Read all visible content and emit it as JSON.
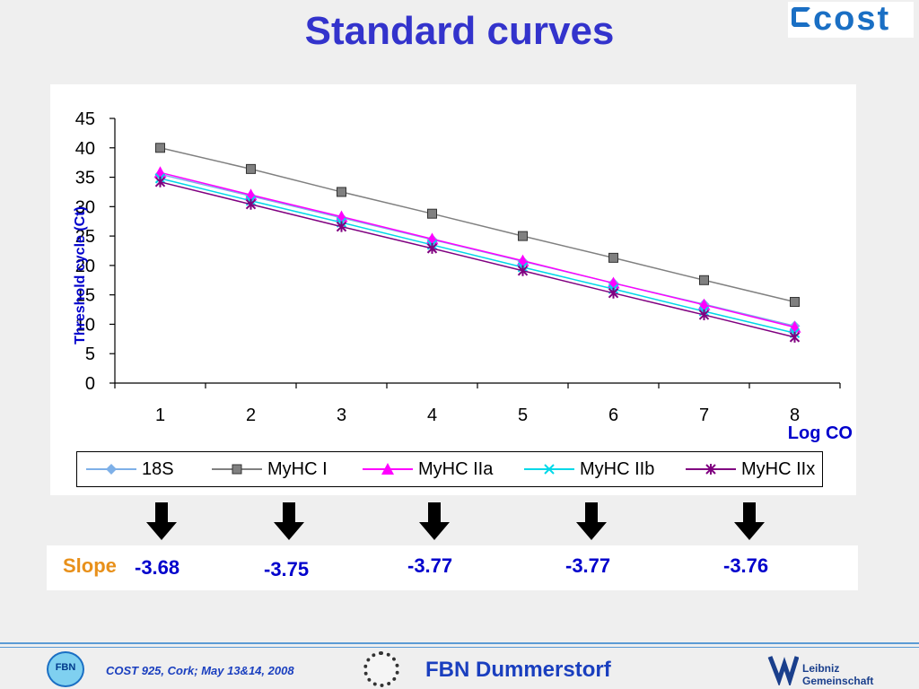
{
  "slide": {
    "title": "Standard curves",
    "logo_text": "cost",
    "slope_label": "Slope",
    "slopes": [
      "-3.68",
      "-3.75",
      "-3.77",
      "-3.77",
      "-3.76"
    ],
    "footer_text": "COST 925, Cork; May 13&14, 2008",
    "footer_institute": "FBN Dummerstorf",
    "footer_logo_text": "FBN",
    "leibniz_line1": "Leibniz",
    "leibniz_line2": "Gemeinschaft"
  },
  "chart_data": {
    "type": "line",
    "title": "",
    "xlabel": "Log CO",
    "ylabel": "Threshold cycle (Ct)",
    "x": [
      1,
      2,
      3,
      4,
      5,
      6,
      7,
      8
    ],
    "ylim": [
      0,
      45
    ],
    "yticks": [
      0,
      5,
      10,
      15,
      20,
      25,
      30,
      35,
      40,
      45
    ],
    "grid": false,
    "legend_position": "bottom",
    "series": [
      {
        "name": "18S",
        "color": "#7eb0e8",
        "marker": "diamond",
        "values": [
          35.5,
          31.8,
          28.1,
          24.4,
          20.7,
          17.0,
          13.4,
          9.7
        ]
      },
      {
        "name": "MyHC I",
        "color": "#808080",
        "marker": "square",
        "values": [
          40.0,
          36.4,
          32.5,
          28.8,
          25.0,
          21.3,
          17.5,
          13.8
        ]
      },
      {
        "name": "MyHC IIa",
        "color": "#ff00ff",
        "marker": "triangle",
        "values": [
          35.8,
          32.0,
          28.3,
          24.5,
          20.8,
          17.0,
          13.3,
          9.5
        ]
      },
      {
        "name": "MyHC IIb",
        "color": "#00d8e8",
        "marker": "x",
        "values": [
          34.8,
          31.0,
          27.3,
          23.5,
          19.7,
          16.0,
          12.2,
          8.5
        ]
      },
      {
        "name": "MyHC IIx",
        "color": "#800080",
        "marker": "star",
        "values": [
          34.2,
          30.4,
          26.6,
          22.9,
          19.1,
          15.3,
          11.6,
          7.8
        ]
      }
    ]
  }
}
